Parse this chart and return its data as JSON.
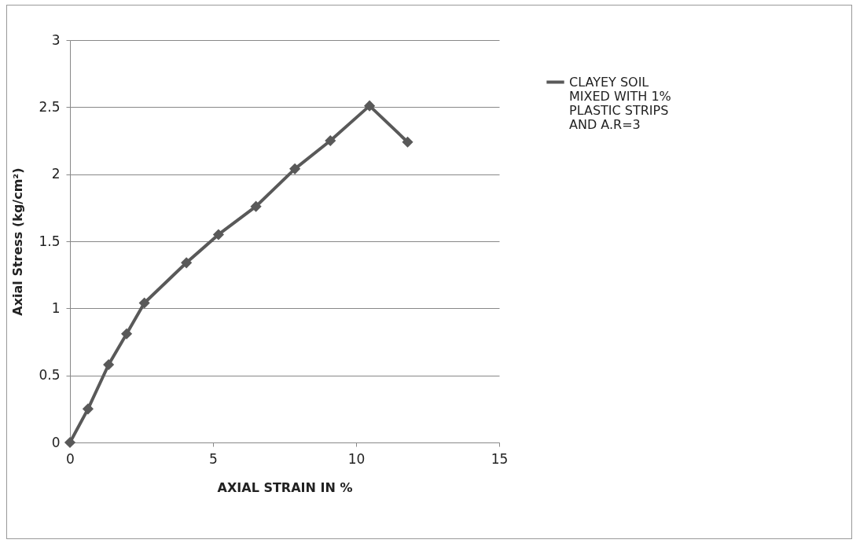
{
  "chart_data": {
    "type": "line",
    "xlabel": "AXIAL STRAIN IN %",
    "ylabel": "Axial Stress (kg/cm²)",
    "x": [
      0,
      0.63,
      1.35,
      1.98,
      2.6,
      4.07,
      5.19,
      6.5,
      7.86,
      9.1,
      10.47,
      11.8
    ],
    "series": [
      {
        "name": "CLAYEY SOIL MIXED WITH  1% PLASTIC STRIPS AND A.R=3",
        "color": "#595959",
        "values": [
          0,
          0.25,
          0.58,
          0.81,
          1.04,
          1.34,
          1.55,
          1.76,
          2.04,
          2.25,
          2.51,
          2.24
        ]
      }
    ],
    "xlim": [
      0,
      15
    ],
    "xticks": [
      0,
      5,
      10,
      15
    ],
    "ylim": [
      0,
      3
    ],
    "yticks": [
      0,
      0.5,
      1,
      1.5,
      2,
      2.5,
      3
    ],
    "grid": "y",
    "legend": "right",
    "marker": "diamond",
    "line_style": "solid"
  }
}
